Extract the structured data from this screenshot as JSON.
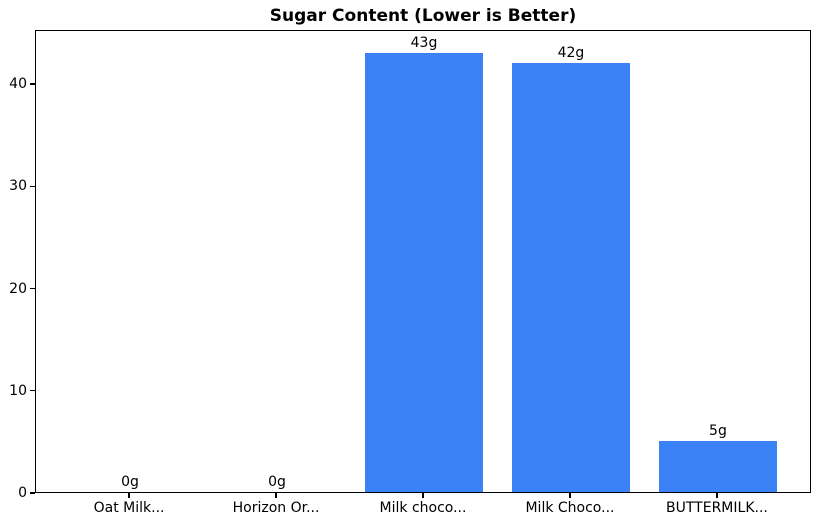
{
  "chart_data": {
    "type": "bar",
    "title": "Sugar Content (Lower is Better)",
    "categories": [
      "Oat Milk...",
      "Horizon Or...",
      "Milk choco...",
      "Milk Choco...",
      "BUTTERMILK..."
    ],
    "values": [
      0,
      0,
      43,
      42,
      5
    ],
    "value_labels": [
      "0g",
      "0g",
      "43g",
      "42g",
      "5g"
    ],
    "xlabel": "",
    "ylabel": "",
    "yticks": [
      0,
      10,
      20,
      30,
      40
    ],
    "ylim": [
      0,
      45.3
    ],
    "xlim_units": [
      -0.64,
      4.64
    ],
    "x_positions": [
      0,
      1,
      2,
      3,
      4
    ],
    "bar_width_units": 0.8,
    "bar_color": "#3b82f6",
    "grid": false,
    "legend": null
  },
  "colors": {
    "background": "#ffffff",
    "spine": "#000000",
    "text": "#000000"
  }
}
